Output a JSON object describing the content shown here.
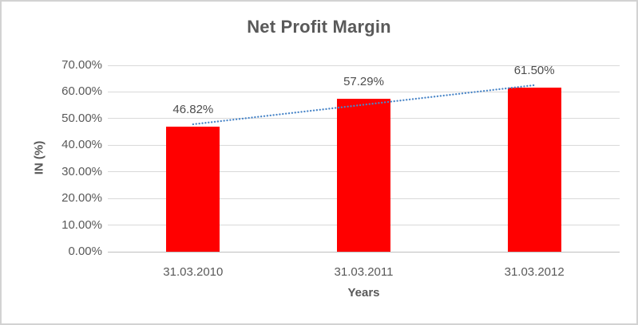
{
  "chart_data": {
    "type": "bar",
    "title": "Net Profit Margin",
    "categories": [
      "31.03.2010",
      "31.03.2011",
      "31.03.2012"
    ],
    "values": [
      46.82,
      57.29,
      61.5
    ],
    "value_labels": [
      "46.82%",
      "57.29%",
      "61.50%"
    ],
    "xlabel": "Years",
    "ylabel": "IN (%)",
    "ylim": [
      0,
      70
    ],
    "ytick_step": 10,
    "ytick_labels": [
      "0.00%",
      "10.00%",
      "20.00%",
      "30.00%",
      "40.00%",
      "50.00%",
      "60.00%",
      "70.00%"
    ],
    "grid": true,
    "legend": false,
    "trendline": {
      "type": "linear",
      "style": "dotted"
    },
    "colors": {
      "bar": "#FF0000",
      "trendline": "#4A86C8",
      "gridline": "#D9D9D9",
      "axis_line": "#BFBFBF",
      "axis_text": "#595959",
      "data_label_text": "#4D4D4D",
      "title_text": "#595959",
      "chart_border": "#D2D2D2",
      "background": "#FFFFFF"
    }
  }
}
